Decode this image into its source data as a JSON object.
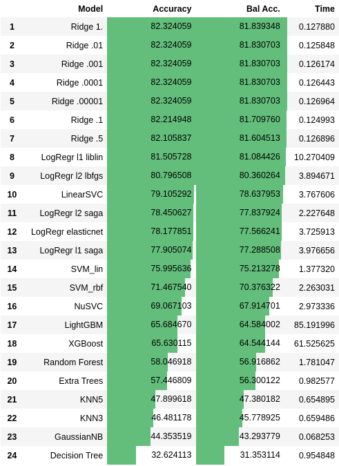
{
  "columns": {
    "index": "",
    "model": "Model",
    "accuracy": "Accuracy",
    "bal_acc": "Bal Acc.",
    "time": "Time"
  },
  "bar_color": "#63be7b",
  "rows": [
    {
      "idx": "1",
      "model": "Ridge 1.",
      "accuracy": "82.324059",
      "bal_acc": "81.839348",
      "time": "0.127880",
      "acc_v": 82.324059,
      "bal_v": 81.839348
    },
    {
      "idx": "2",
      "model": "Ridge .01",
      "accuracy": "82.324059",
      "bal_acc": "81.830703",
      "time": "0.125848",
      "acc_v": 82.324059,
      "bal_v": 81.830703
    },
    {
      "idx": "3",
      "model": "Ridge .001",
      "accuracy": "82.324059",
      "bal_acc": "81.830703",
      "time": "0.126174",
      "acc_v": 82.324059,
      "bal_v": 81.830703
    },
    {
      "idx": "4",
      "model": "Ridge .0001",
      "accuracy": "82.324059",
      "bal_acc": "81.830703",
      "time": "0.126443",
      "acc_v": 82.324059,
      "bal_v": 81.830703
    },
    {
      "idx": "5",
      "model": "Ridge .00001",
      "accuracy": "82.324059",
      "bal_acc": "81.830703",
      "time": "0.126964",
      "acc_v": 82.324059,
      "bal_v": 81.830703
    },
    {
      "idx": "6",
      "model": "Ridge .1",
      "accuracy": "82.214948",
      "bal_acc": "81.709760",
      "time": "0.124993",
      "acc_v": 82.214948,
      "bal_v": 81.70976
    },
    {
      "idx": "7",
      "model": "Ridge .5",
      "accuracy": "82.105837",
      "bal_acc": "81.604513",
      "time": "0.126896",
      "acc_v": 82.105837,
      "bal_v": 81.604513
    },
    {
      "idx": "8",
      "model": "LogRegr l1 liblin",
      "accuracy": "81.505728",
      "bal_acc": "81.084426",
      "time": "10.270409",
      "acc_v": 81.505728,
      "bal_v": 81.084426
    },
    {
      "idx": "9",
      "model": "LogRegr l2 lbfgs",
      "accuracy": "80.796508",
      "bal_acc": "80.360264",
      "time": "3.894671",
      "acc_v": 80.796508,
      "bal_v": 80.360264
    },
    {
      "idx": "10",
      "model": "LinearSVC",
      "accuracy": "79.105292",
      "bal_acc": "78.637953",
      "time": "3.767606",
      "acc_v": 79.105292,
      "bal_v": 78.637953
    },
    {
      "idx": "11",
      "model": "LogRegr l2 saga",
      "accuracy": "78.450627",
      "bal_acc": "77.837924",
      "time": "2.227648",
      "acc_v": 78.450627,
      "bal_v": 77.837924
    },
    {
      "idx": "12",
      "model": "LogRegr elasticnet",
      "accuracy": "78.177851",
      "bal_acc": "77.566241",
      "time": "3.725913",
      "acc_v": 78.177851,
      "bal_v": 77.566241
    },
    {
      "idx": "13",
      "model": "LogRegr l1 saga",
      "accuracy": "77.905074",
      "bal_acc": "77.288508",
      "time": "3.976656",
      "acc_v": 77.905074,
      "bal_v": 77.288508
    },
    {
      "idx": "14",
      "model": "SVM_lin",
      "accuracy": "75.995636",
      "bal_acc": "75.213278",
      "time": "1.377320",
      "acc_v": 75.995636,
      "bal_v": 75.213278
    },
    {
      "idx": "15",
      "model": "SVM_rbf",
      "accuracy": "71.467540",
      "bal_acc": "70.376322",
      "time": "2.263031",
      "acc_v": 71.46754,
      "bal_v": 70.376322
    },
    {
      "idx": "16",
      "model": "NuSVC",
      "accuracy": "69.067103",
      "bal_acc": "67.914701",
      "time": "2.973336",
      "acc_v": 69.067103,
      "bal_v": 67.914701
    },
    {
      "idx": "17",
      "model": "LightGBM",
      "accuracy": "65.684670",
      "bal_acc": "64.584002",
      "time": "85.191996",
      "acc_v": 65.68467,
      "bal_v": 64.584002
    },
    {
      "idx": "18",
      "model": "XGBoost",
      "accuracy": "65.630115",
      "bal_acc": "64.544144",
      "time": "61.525625",
      "acc_v": 65.630115,
      "bal_v": 64.544144
    },
    {
      "idx": "19",
      "model": "Random Forest",
      "accuracy": "58.046918",
      "bal_acc": "56.916862",
      "time": "1.781047",
      "acc_v": 58.046918,
      "bal_v": 56.916862
    },
    {
      "idx": "20",
      "model": "Extra Trees",
      "accuracy": "57.446809",
      "bal_acc": "56.300122",
      "time": "0.982577",
      "acc_v": 57.446809,
      "bal_v": 56.300122
    },
    {
      "idx": "21",
      "model": "KNN5",
      "accuracy": "47.899618",
      "bal_acc": "47.380182",
      "time": "0.654895",
      "acc_v": 47.899618,
      "bal_v": 47.380182
    },
    {
      "idx": "22",
      "model": "KNN3",
      "accuracy": "46.481178",
      "bal_acc": "45.778925",
      "time": "0.659486",
      "acc_v": 46.481178,
      "bal_v": 45.778925
    },
    {
      "idx": "23",
      "model": "GaussianNB",
      "accuracy": "44.353519",
      "bal_acc": "43.293779",
      "time": "0.068253",
      "acc_v": 44.353519,
      "bal_v": 43.293779
    },
    {
      "idx": "24",
      "model": "Decision Tree",
      "accuracy": "32.624113",
      "bal_acc": "31.353114",
      "time": "0.954848",
      "acc_v": 32.624113,
      "bal_v": 31.353114
    }
  ]
}
